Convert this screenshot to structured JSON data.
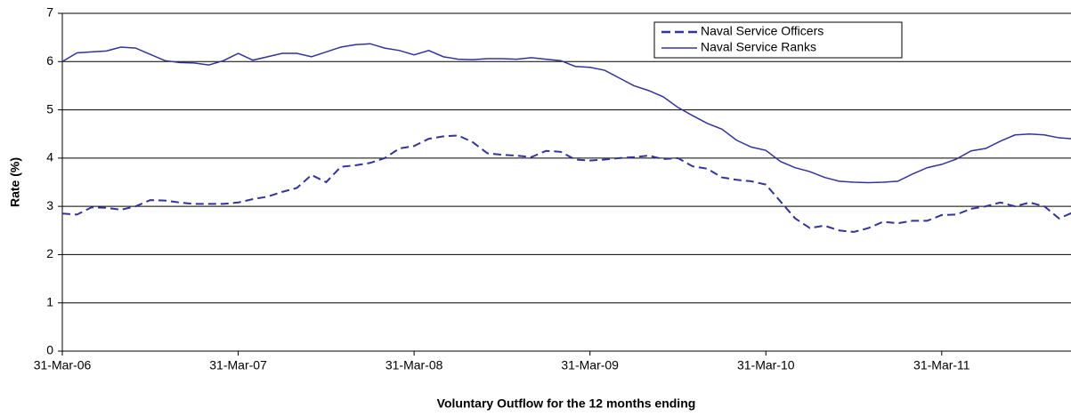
{
  "chart_data": {
    "type": "line",
    "xlabel": "Voluntary Outflow for the 12 months ending",
    "ylabel": "Rate (%)",
    "categories": [
      "31-Mar-06",
      null,
      null,
      null,
      null,
      null,
      null,
      null,
      null,
      null,
      null,
      null,
      "31-Mar-07",
      null,
      null,
      null,
      null,
      null,
      null,
      null,
      null,
      null,
      null,
      null,
      "31-Mar-08",
      null,
      null,
      null,
      null,
      null,
      null,
      null,
      null,
      null,
      null,
      null,
      "31-Mar-09",
      null,
      null,
      null,
      null,
      null,
      null,
      null,
      null,
      null,
      null,
      null,
      "31-Mar-10",
      null,
      null,
      null,
      null,
      null,
      null,
      null,
      null,
      null,
      null,
      null,
      "31-Mar-11",
      null,
      null,
      null,
      null,
      null,
      null,
      null,
      null,
      null
    ],
    "series": [
      {
        "name": "Naval Service Officers",
        "color": "#333399",
        "line_style": "dashed",
        "values": [
          2.85,
          2.83,
          2.98,
          2.97,
          2.93,
          3.0,
          3.13,
          3.12,
          3.08,
          3.05,
          3.05,
          3.05,
          3.08,
          3.15,
          3.2,
          3.3,
          3.38,
          3.65,
          3.5,
          3.82,
          3.85,
          3.9,
          4.0,
          4.2,
          4.25,
          4.4,
          4.45,
          4.47,
          4.33,
          4.1,
          4.07,
          4.05,
          4.02,
          4.15,
          4.13,
          3.97,
          3.95,
          3.97,
          4.0,
          4.02,
          4.05,
          3.98,
          4.0,
          3.83,
          3.78,
          3.6,
          3.55,
          3.52,
          3.45,
          3.1,
          2.75,
          2.55,
          2.6,
          2.5,
          2.47,
          2.55,
          2.68,
          2.65,
          2.7,
          2.7,
          2.82,
          2.83,
          2.95,
          3.0,
          3.08,
          3.0,
          3.08,
          3.0,
          2.75,
          2.88
        ]
      },
      {
        "name": "Naval Service Ranks",
        "color": "#333399",
        "line_style": "solid",
        "values": [
          6.0,
          6.18,
          6.2,
          6.22,
          6.3,
          6.28,
          6.15,
          6.02,
          5.98,
          5.97,
          5.93,
          6.02,
          6.17,
          6.03,
          6.1,
          6.17,
          6.17,
          6.1,
          6.2,
          6.3,
          6.35,
          6.37,
          6.28,
          6.23,
          6.14,
          6.23,
          6.1,
          6.05,
          6.04,
          6.06,
          6.06,
          6.05,
          6.08,
          6.05,
          6.02,
          5.9,
          5.88,
          5.82,
          5.66,
          5.5,
          5.4,
          5.27,
          5.05,
          4.88,
          4.72,
          4.6,
          4.37,
          4.23,
          4.16,
          3.93,
          3.8,
          3.72,
          3.6,
          3.52,
          3.5,
          3.49,
          3.5,
          3.52,
          3.67,
          3.8,
          3.87,
          3.98,
          4.15,
          4.2,
          4.35,
          4.48,
          4.5,
          4.48,
          4.42,
          4.4
        ]
      }
    ],
    "ylim": [
      0,
      7
    ],
    "yticks": [
      0,
      1,
      2,
      3,
      4,
      5,
      6,
      7
    ],
    "grid": true,
    "legend": "top-right"
  }
}
